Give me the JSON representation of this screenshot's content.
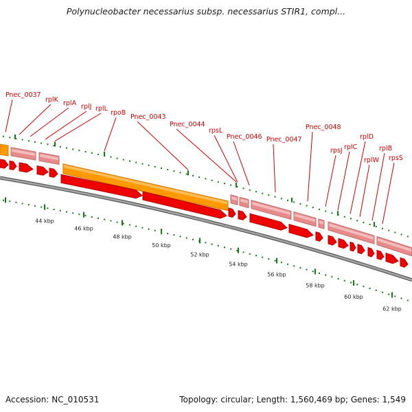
{
  "title": "Polynucleobacter necessarius subsp. necessarius STIR1, compl...",
  "accession": "Accession: NC_010531",
  "summary": "Topology: circular; Length: 1,560,469 bp; Genes: 1,549",
  "colors": {
    "orange": "#ff9900",
    "orange_dark": "#d47800",
    "pink": "#e78a8a",
    "pink_light": "#f3bcbc",
    "red": "#ee0000",
    "red_dark": "#b30000",
    "backbone": "#888888",
    "tick": "#117711",
    "label": "#cc0000"
  },
  "gene_labels": [
    "Pnec_0037",
    "rplK",
    "rplA",
    "rplJ",
    "rplL",
    "rpoB",
    "Pnec_0043",
    "Pnec_0044",
    "rpsL",
    "Pnec_0046",
    "Pnec_0047",
    "Pnec_0048",
    "rpsJ",
    "rplC",
    "rplD",
    "rplW",
    "rplB",
    "rpsS"
  ],
  "scale_labels": [
    "44 kbp",
    "46 kbp",
    "48 kbp",
    "50 kbp",
    "52 kbp",
    "54 kbp",
    "56 kbp",
    "58 kbp",
    "60 kbp",
    "62 kbp"
  ]
}
